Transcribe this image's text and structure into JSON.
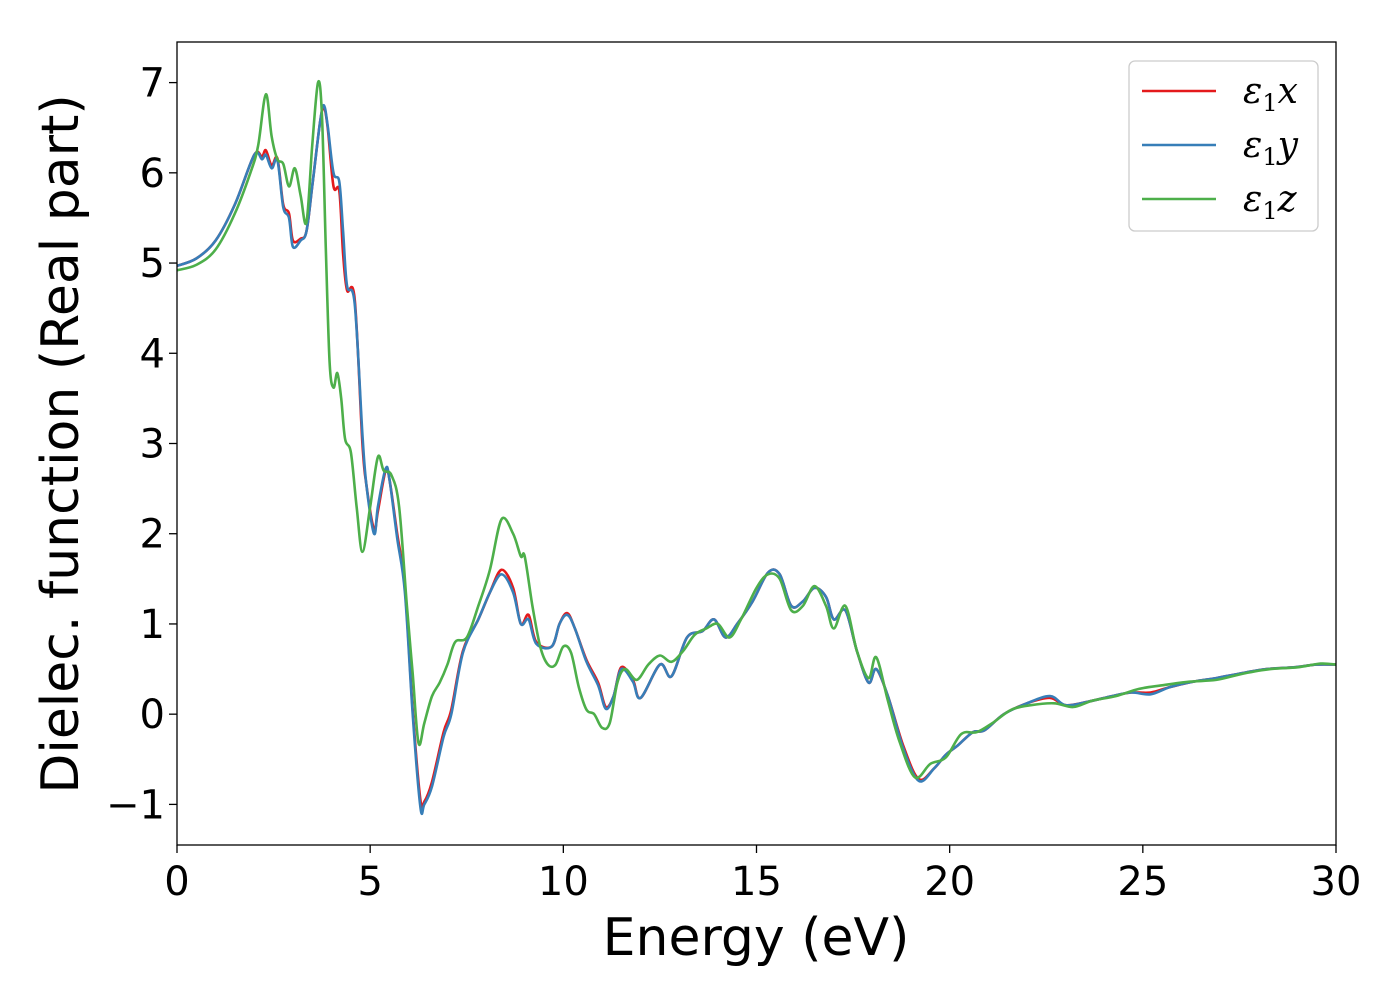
{
  "chart_data": {
    "type": "line",
    "title": "",
    "xlabel": "Energy (eV)",
    "ylabel": "Dielec. function (Real part)",
    "xlim": [
      0,
      30
    ],
    "ylim": [
      -1.45,
      7.45
    ],
    "xticks": [
      0,
      5,
      10,
      15,
      20,
      25,
      30
    ],
    "xtick_labels": [
      "0",
      "5",
      "10",
      "15",
      "20",
      "25",
      "30"
    ],
    "yticks": [
      -1,
      0,
      1,
      2,
      3,
      4,
      5,
      6,
      7
    ],
    "ytick_labels": [
      "−1",
      "0",
      "1",
      "2",
      "3",
      "4",
      "5",
      "6",
      "7"
    ],
    "grid": false,
    "legend_position": "top-right",
    "series": [
      {
        "name": "ε1x",
        "legend_base": "ε",
        "legend_sub": "1",
        "legend_var": "x",
        "color": "#e41a1c",
        "x": [
          0,
          0.5,
          1,
          1.5,
          2,
          2.2,
          2.3,
          2.45,
          2.6,
          2.75,
          2.9,
          3,
          3.2,
          3.35,
          3.5,
          3.7,
          3.8,
          3.9,
          4.05,
          4.2,
          4.3,
          4.4,
          4.6,
          4.8,
          4.9,
          5.1,
          5.2,
          5.4,
          5.5,
          5.7,
          5.9,
          6.1,
          6.3,
          6.4,
          6.6,
          6.9,
          7.1,
          7.4,
          7.8,
          8.1,
          8.4,
          8.7,
          8.9,
          9.1,
          9.3,
          9.7,
          9.9,
          10.1,
          10.3,
          10.6,
          10.9,
          11.1,
          11.3,
          11.5,
          11.8,
          12,
          12.5,
          12.8,
          13.2,
          13.6,
          13.9,
          14.2,
          14.5,
          14.9,
          15.3,
          15.6,
          15.9,
          16.2,
          16.5,
          16.8,
          17,
          17.3,
          17.6,
          17.9,
          18.1,
          18.4,
          18.8,
          19.2,
          19.6,
          19.9,
          20.2,
          20.6,
          20.9,
          21.4,
          22,
          22.6,
          23,
          23.6,
          24.2,
          24.7,
          25.2,
          25.7,
          26.3,
          26.9,
          27.5,
          28.2,
          28.9,
          29.5,
          30
        ],
        "y": [
          4.97,
          5.05,
          5.25,
          5.65,
          6.2,
          6.18,
          6.25,
          6.08,
          6.16,
          5.65,
          5.55,
          5.25,
          5.27,
          5.35,
          5.85,
          6.55,
          6.72,
          6.5,
          5.85,
          5.8,
          5.1,
          4.7,
          4.6,
          3.0,
          2.55,
          2.05,
          2.25,
          2.7,
          2.6,
          2.0,
          1.4,
          0.05,
          -0.95,
          -0.97,
          -0.75,
          -0.2,
          0.05,
          0.7,
          1.05,
          1.35,
          1.6,
          1.4,
          1.0,
          1.1,
          0.8,
          0.75,
          1.0,
          1.12,
          0.95,
          0.6,
          0.35,
          0.08,
          0.2,
          0.52,
          0.38,
          0.18,
          0.55,
          0.42,
          0.85,
          0.92,
          1.05,
          0.85,
          1.0,
          1.25,
          1.57,
          1.55,
          1.2,
          1.25,
          1.4,
          1.3,
          1.05,
          1.15,
          0.7,
          0.35,
          0.5,
          0.2,
          -0.35,
          -0.72,
          -0.6,
          -0.45,
          -0.35,
          -0.2,
          -0.18,
          0.0,
          0.12,
          0.18,
          0.1,
          0.14,
          0.2,
          0.24,
          0.24,
          0.3,
          0.36,
          0.4,
          0.45,
          0.5,
          0.52,
          0.55,
          0.55
        ]
      },
      {
        "name": "ε1y",
        "legend_base": "ε",
        "legend_sub": "1",
        "legend_var": "y",
        "color": "#377eb8",
        "x": [
          0,
          0.5,
          1,
          1.5,
          2,
          2.2,
          2.3,
          2.45,
          2.6,
          2.75,
          2.9,
          3,
          3.2,
          3.35,
          3.5,
          3.7,
          3.8,
          3.9,
          4.05,
          4.2,
          4.3,
          4.4,
          4.6,
          4.8,
          4.9,
          5.1,
          5.2,
          5.4,
          5.5,
          5.7,
          5.9,
          6.1,
          6.3,
          6.4,
          6.6,
          6.9,
          7.1,
          7.4,
          7.8,
          8.1,
          8.4,
          8.7,
          8.9,
          9.1,
          9.3,
          9.7,
          9.9,
          10.1,
          10.3,
          10.6,
          10.9,
          11.1,
          11.3,
          11.5,
          11.8,
          12,
          12.5,
          12.8,
          13.2,
          13.6,
          13.9,
          14.2,
          14.5,
          14.9,
          15.3,
          15.6,
          15.9,
          16.2,
          16.5,
          16.8,
          17,
          17.3,
          17.6,
          17.9,
          18.1,
          18.4,
          18.8,
          19.2,
          19.6,
          19.9,
          20.2,
          20.6,
          20.9,
          21.4,
          22,
          22.6,
          23,
          23.6,
          24.2,
          24.7,
          25.2,
          25.7,
          26.3,
          26.9,
          27.5,
          28.2,
          28.9,
          29.5,
          30
        ],
        "y": [
          4.97,
          5.05,
          5.25,
          5.65,
          6.2,
          6.15,
          6.2,
          6.05,
          6.14,
          5.62,
          5.5,
          5.18,
          5.25,
          5.35,
          5.85,
          6.55,
          6.75,
          6.52,
          6.0,
          5.9,
          5.35,
          4.75,
          4.55,
          3.1,
          2.55,
          2.0,
          2.3,
          2.72,
          2.6,
          1.95,
          1.35,
          0.0,
          -1.03,
          -1.0,
          -0.8,
          -0.25,
          0.0,
          0.68,
          1.05,
          1.35,
          1.55,
          1.35,
          1.0,
          1.05,
          0.78,
          0.75,
          1.0,
          1.1,
          0.95,
          0.58,
          0.32,
          0.06,
          0.2,
          0.5,
          0.36,
          0.18,
          0.55,
          0.42,
          0.85,
          0.92,
          1.05,
          0.85,
          1.0,
          1.25,
          1.57,
          1.55,
          1.2,
          1.25,
          1.4,
          1.3,
          1.05,
          1.15,
          0.7,
          0.35,
          0.5,
          0.2,
          -0.38,
          -0.74,
          -0.6,
          -0.45,
          -0.35,
          -0.2,
          -0.18,
          0.0,
          0.12,
          0.2,
          0.1,
          0.14,
          0.2,
          0.24,
          0.22,
          0.3,
          0.36,
          0.4,
          0.45,
          0.5,
          0.52,
          0.55,
          0.55
        ]
      },
      {
        "name": "ε1z",
        "legend_base": "ε",
        "legend_sub": "1",
        "legend_var": "z",
        "color": "#4daf4a",
        "x": [
          0,
          0.5,
          1,
          1.5,
          1.9,
          2.1,
          2.3,
          2.45,
          2.6,
          2.75,
          2.9,
          3.05,
          3.2,
          3.35,
          3.5,
          3.65,
          3.75,
          3.85,
          3.95,
          4.05,
          4.15,
          4.25,
          4.35,
          4.5,
          4.65,
          4.8,
          5.0,
          5.2,
          5.35,
          5.55,
          5.75,
          5.95,
          6.1,
          6.25,
          6.4,
          6.6,
          6.8,
          7.0,
          7.2,
          7.5,
          7.8,
          8.1,
          8.4,
          8.7,
          8.9,
          9.0,
          9.2,
          9.4,
          9.6,
          9.8,
          10.0,
          10.2,
          10.4,
          10.6,
          10.8,
          11.0,
          11.2,
          11.4,
          11.6,
          11.9,
          12.2,
          12.5,
          12.8,
          13.1,
          13.4,
          13.7,
          14.0,
          14.3,
          14.6,
          15.0,
          15.3,
          15.6,
          15.9,
          16.2,
          16.5,
          16.8,
          17.0,
          17.3,
          17.6,
          17.9,
          18.1,
          18.4,
          18.7,
          19.1,
          19.5,
          19.9,
          20.3,
          20.7,
          21.1,
          21.6,
          22.1,
          22.7,
          23.2,
          23.7,
          24.3,
          24.9,
          25.5,
          26.2,
          26.9,
          27.6,
          28.3,
          29.0,
          29.6,
          30
        ],
        "y": [
          4.92,
          4.98,
          5.15,
          5.55,
          6.0,
          6.3,
          6.87,
          6.4,
          6.15,
          6.1,
          5.85,
          6.05,
          5.75,
          5.45,
          6.3,
          7.0,
          6.65,
          5.2,
          3.9,
          3.62,
          3.78,
          3.5,
          3.05,
          2.9,
          2.3,
          1.8,
          2.3,
          2.85,
          2.7,
          2.65,
          2.3,
          1.2,
          0.45,
          -0.32,
          -0.1,
          0.2,
          0.35,
          0.55,
          0.8,
          0.85,
          1.2,
          1.6,
          2.16,
          2.0,
          1.75,
          1.75,
          1.2,
          0.75,
          0.55,
          0.55,
          0.75,
          0.68,
          0.3,
          0.05,
          0.0,
          -0.15,
          -0.1,
          0.35,
          0.5,
          0.38,
          0.55,
          0.65,
          0.58,
          0.7,
          0.88,
          0.95,
          1.0,
          0.85,
          1.05,
          1.4,
          1.55,
          1.5,
          1.15,
          1.2,
          1.42,
          1.2,
          0.95,
          1.2,
          0.7,
          0.4,
          0.63,
          0.15,
          -0.3,
          -0.7,
          -0.55,
          -0.48,
          -0.22,
          -0.2,
          -0.1,
          0.05,
          0.1,
          0.12,
          0.08,
          0.15,
          0.2,
          0.28,
          0.32,
          0.36,
          0.38,
          0.45,
          0.5,
          0.52,
          0.56,
          0.55
        ]
      }
    ]
  }
}
